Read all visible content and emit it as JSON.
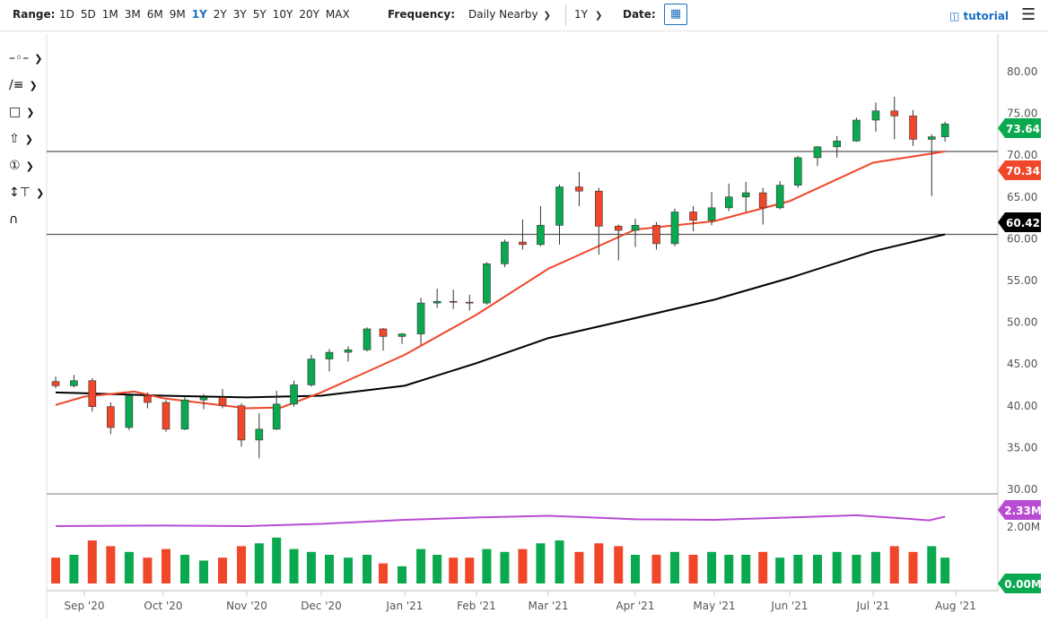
{
  "toolbar": {
    "range_label": "Range:",
    "ranges": [
      "1D",
      "5D",
      "1M",
      "3M",
      "6M",
      "9M",
      "1Y",
      "2Y",
      "3Y",
      "5Y",
      "10Y",
      "20Y",
      "MAX"
    ],
    "active_range": "1Y",
    "frequency_label": "Frequency:",
    "frequency_value": "Daily Nearby",
    "period_value": "1Y",
    "date_label": "Date:",
    "tutorial_label": "tutorial"
  },
  "tools": [
    "crosshair-tool",
    "trendline-fib-tool",
    "rectangle-tool",
    "arrow-tool",
    "annotation-tool",
    "measure-tool",
    "magnet-tool"
  ],
  "colors": {
    "up": "#0aa84f",
    "down": "#f0462a",
    "ma50": "#f0462a",
    "ma200": "#000000",
    "vol_avg": "#b84bd1",
    "accent": "#1a6fc4"
  },
  "chart_data": {
    "type": "candlestick",
    "yticks": [
      "80.00",
      "75.00",
      "70.00",
      "65.00",
      "60.00",
      "55.00",
      "50.00",
      "45.00",
      "40.00",
      "35.00",
      "30.00"
    ],
    "ylim": [
      30,
      80
    ],
    "volume_ticks": [
      "2.00M"
    ],
    "xticks": [
      [
        "2020-09-01",
        "Sep '20"
      ],
      [
        "2020-10-01",
        "Oct '20"
      ],
      [
        "2020-11-01",
        "Nov '20"
      ],
      [
        "2020-12-01",
        "Dec '20"
      ],
      [
        "2021-01-01",
        "Jan '21"
      ],
      [
        "2021-02-01",
        "Feb '21"
      ],
      [
        "2021-03-01",
        "Mar '21"
      ],
      [
        "2021-04-01",
        "Apr '21"
      ],
      [
        "2021-05-01",
        "May '21"
      ],
      [
        "2021-06-01",
        "Jun '21"
      ],
      [
        "2021-07-01",
        "Jul '21"
      ],
      [
        "2021-08-01",
        "Aug '21"
      ]
    ],
    "candles": [
      [
        "2020-08-21",
        42.8,
        43.4,
        42.0,
        42.3,
        0.9
      ],
      [
        "2020-08-28",
        42.3,
        43.6,
        42.1,
        42.9,
        1.0
      ],
      [
        "2020-09-04",
        42.9,
        43.2,
        39.2,
        39.8,
        1.5
      ],
      [
        "2020-09-11",
        39.8,
        40.3,
        36.5,
        37.3,
        1.3
      ],
      [
        "2020-09-18",
        37.3,
        41.4,
        37.0,
        41.1,
        1.1
      ],
      [
        "2020-09-25",
        41.1,
        41.5,
        39.6,
        40.3,
        0.9
      ],
      [
        "2020-10-02",
        40.3,
        40.6,
        36.8,
        37.1,
        1.2
      ],
      [
        "2020-10-09",
        37.1,
        41.0,
        37.0,
        40.6,
        1.0
      ],
      [
        "2020-10-16",
        40.6,
        41.3,
        39.5,
        40.9,
        0.8
      ],
      [
        "2020-10-23",
        40.9,
        41.9,
        39.6,
        39.9,
        0.9
      ],
      [
        "2020-10-30",
        39.9,
        40.2,
        35.0,
        35.8,
        1.3
      ],
      [
        "2020-11-06",
        35.8,
        39.0,
        33.6,
        37.1,
        1.4
      ],
      [
        "2020-11-13",
        37.1,
        41.7,
        37.0,
        40.1,
        1.6
      ],
      [
        "2020-11-20",
        40.1,
        42.9,
        39.8,
        42.4,
        1.2
      ],
      [
        "2020-11-27",
        42.4,
        46.0,
        42.2,
        45.5,
        1.1
      ],
      [
        "2020-12-04",
        45.5,
        46.7,
        44.0,
        46.3,
        1.0
      ],
      [
        "2020-12-11",
        46.3,
        47.0,
        45.2,
        46.6,
        0.9
      ],
      [
        "2020-12-18",
        46.6,
        49.3,
        46.4,
        49.1,
        1.0
      ],
      [
        "2020-12-24",
        49.1,
        49.2,
        46.5,
        48.2,
        0.7
      ],
      [
        "2020-12-31",
        48.2,
        48.6,
        47.3,
        48.5,
        0.6
      ],
      [
        "2021-01-08",
        48.5,
        52.8,
        47.2,
        52.2,
        1.2
      ],
      [
        "2021-01-15",
        52.2,
        53.9,
        51.6,
        52.4,
        1.0
      ],
      [
        "2021-01-22",
        52.4,
        53.8,
        51.5,
        52.3,
        0.9
      ],
      [
        "2021-01-29",
        52.3,
        53.2,
        51.3,
        52.2,
        0.9
      ],
      [
        "2021-02-05",
        52.2,
        57.1,
        52.0,
        56.9,
        1.2
      ],
      [
        "2021-02-12",
        56.9,
        59.8,
        56.5,
        59.5,
        1.1
      ],
      [
        "2021-02-19",
        59.5,
        62.2,
        58.6,
        59.2,
        1.2
      ],
      [
        "2021-02-26",
        59.2,
        63.8,
        59.0,
        61.5,
        1.4
      ],
      [
        "2021-03-05",
        61.5,
        66.4,
        59.2,
        66.1,
        1.5
      ],
      [
        "2021-03-12",
        66.1,
        67.9,
        63.8,
        65.6,
        1.1
      ],
      [
        "2021-03-19",
        65.6,
        66.0,
        58.0,
        61.4,
        1.4
      ],
      [
        "2021-03-26",
        61.4,
        61.6,
        57.3,
        60.9,
        1.3
      ],
      [
        "2021-04-01",
        60.9,
        62.3,
        58.9,
        61.5,
        1.0
      ],
      [
        "2021-04-09",
        61.5,
        61.9,
        58.6,
        59.3,
        1.0
      ],
      [
        "2021-04-16",
        59.3,
        63.5,
        59.0,
        63.1,
        1.1
      ],
      [
        "2021-04-23",
        63.1,
        63.8,
        60.8,
        62.1,
        1.0
      ],
      [
        "2021-04-30",
        62.1,
        65.5,
        61.5,
        63.6,
        1.1
      ],
      [
        "2021-05-07",
        63.6,
        66.5,
        63.2,
        64.9,
        1.0
      ],
      [
        "2021-05-14",
        64.9,
        66.7,
        63.1,
        65.4,
        1.0
      ],
      [
        "2021-05-21",
        65.4,
        66.0,
        61.6,
        63.6,
        1.1
      ],
      [
        "2021-05-28",
        63.6,
        66.8,
        63.4,
        66.3,
        0.9
      ],
      [
        "2021-06-04",
        66.3,
        69.8,
        66.0,
        69.6,
        1.0
      ],
      [
        "2021-06-11",
        69.6,
        71.0,
        68.6,
        70.9,
        1.0
      ],
      [
        "2021-06-18",
        70.9,
        72.2,
        69.6,
        71.6,
        1.1
      ],
      [
        "2021-06-25",
        71.6,
        74.4,
        71.5,
        74.1,
        1.0
      ],
      [
        "2021-07-02",
        74.1,
        76.2,
        72.7,
        75.2,
        1.1
      ],
      [
        "2021-07-09",
        75.2,
        76.9,
        71.8,
        74.6,
        1.3
      ],
      [
        "2021-07-16",
        74.6,
        75.3,
        71.0,
        71.8,
        1.1
      ],
      [
        "2021-07-23",
        71.8,
        72.4,
        65.0,
        72.1,
        1.3
      ],
      [
        "2021-07-28",
        72.1,
        73.9,
        71.5,
        73.64,
        0.9
      ]
    ],
    "candle_fields": [
      "date",
      "open",
      "high",
      "low",
      "close",
      "volume_M"
    ],
    "ma_50": [
      [
        "2020-08-21",
        40.0
      ],
      [
        "2020-09-01",
        41.0
      ],
      [
        "2020-09-20",
        41.6
      ],
      [
        "2020-10-01",
        40.8
      ],
      [
        "2020-11-01",
        39.6
      ],
      [
        "2020-11-15",
        39.7
      ],
      [
        "2020-12-01",
        41.5
      ],
      [
        "2021-01-01",
        46.0
      ],
      [
        "2021-02-01",
        50.8
      ],
      [
        "2021-03-01",
        56.3
      ],
      [
        "2021-04-01",
        61.0
      ],
      [
        "2021-05-01",
        62.0
      ],
      [
        "2021-06-01",
        64.4
      ],
      [
        "2021-07-01",
        69.0
      ],
      [
        "2021-07-28",
        70.34
      ]
    ],
    "ma_200": [
      [
        "2020-08-21",
        41.5
      ],
      [
        "2020-09-01",
        41.4
      ],
      [
        "2020-10-01",
        41.1
      ],
      [
        "2020-11-01",
        40.9
      ],
      [
        "2020-12-01",
        41.1
      ],
      [
        "2021-01-01",
        42.3
      ],
      [
        "2021-02-01",
        45.0
      ],
      [
        "2021-03-01",
        48.0
      ],
      [
        "2021-04-01",
        50.4
      ],
      [
        "2021-05-01",
        52.6
      ],
      [
        "2021-06-01",
        55.2
      ],
      [
        "2021-07-01",
        58.4
      ],
      [
        "2021-07-28",
        60.42
      ]
    ],
    "volume_avg": [
      [
        "2020-08-21",
        2.0
      ],
      [
        "2020-10-01",
        2.02
      ],
      [
        "2020-11-01",
        2.0
      ],
      [
        "2020-12-01",
        2.08
      ],
      [
        "2021-01-01",
        2.22
      ],
      [
        "2021-02-01",
        2.3
      ],
      [
        "2021-03-01",
        2.36
      ],
      [
        "2021-04-01",
        2.24
      ],
      [
        "2021-05-01",
        2.22
      ],
      [
        "2021-06-01",
        2.3
      ],
      [
        "2021-06-25",
        2.38
      ],
      [
        "2021-07-15",
        2.25
      ],
      [
        "2021-07-22",
        2.2
      ],
      [
        "2021-07-28",
        2.33
      ]
    ],
    "hlines": [
      70.34,
      60.42
    ],
    "labels": {
      "last": "73.64",
      "ma50": "70.34",
      "ma200": "60.42",
      "vol_avg": "2.33M",
      "vol_last": "0.00M"
    }
  }
}
